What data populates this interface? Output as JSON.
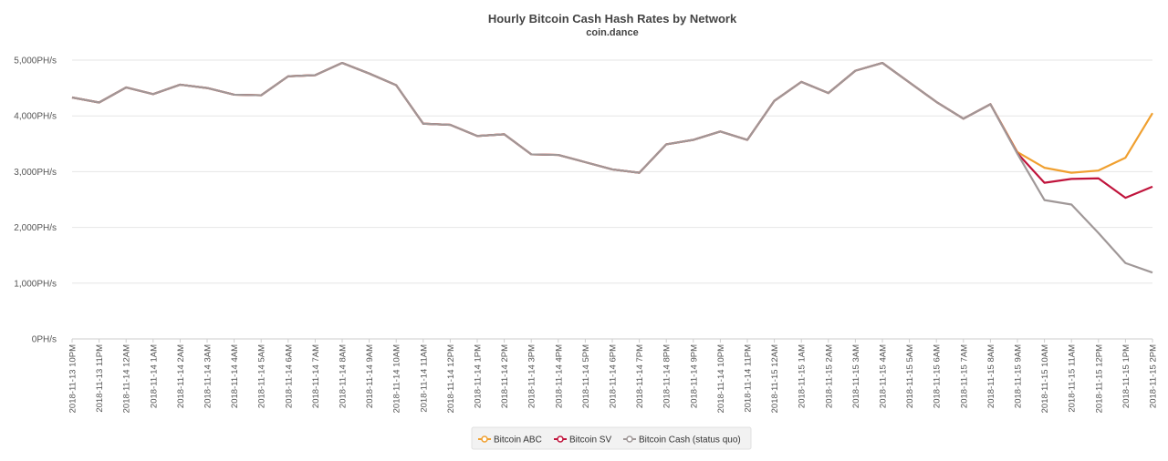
{
  "chart_data": {
    "type": "line",
    "title": "Hourly Bitcoin Cash Hash Rates by Network",
    "subtitle": "coin.dance",
    "xlabel": "",
    "ylabel": "",
    "ylim": [
      0,
      5000
    ],
    "y_ticks": [
      "0PH/s",
      "1,000PH/s",
      "2,000PH/s",
      "3,000PH/s",
      "4,000PH/s",
      "5,000PH/s"
    ],
    "y_tick_values": [
      0,
      1000,
      2000,
      3000,
      4000,
      5000
    ],
    "grid": true,
    "legend_position": "bottom-center",
    "categories": [
      "2018-11-13 10PM",
      "2018-11-13 11PM",
      "2018-11-14 12AM",
      "2018-11-14 1AM",
      "2018-11-14 2AM",
      "2018-11-14 3AM",
      "2018-11-14 4AM",
      "2018-11-14 5AM",
      "2018-11-14 6AM",
      "2018-11-14 7AM",
      "2018-11-14 8AM",
      "2018-11-14 9AM",
      "2018-11-14 10AM",
      "2018-11-14 11AM",
      "2018-11-14 12PM",
      "2018-11-14 1PM",
      "2018-11-14 2PM",
      "2018-11-14 3PM",
      "2018-11-14 4PM",
      "2018-11-14 5PM",
      "2018-11-14 6PM",
      "2018-11-14 7PM",
      "2018-11-14 8PM",
      "2018-11-14 9PM",
      "2018-11-14 10PM",
      "2018-11-14 11PM",
      "2018-11-15 12AM",
      "2018-11-15 1AM",
      "2018-11-15 2AM",
      "2018-11-15 3AM",
      "2018-11-15 4AM",
      "2018-11-15 5AM",
      "2018-11-15 6AM",
      "2018-11-15 7AM",
      "2018-11-15 8AM",
      "2018-11-15 9AM",
      "2018-11-15 10AM",
      "2018-11-15 11AM",
      "2018-11-15 12PM",
      "2018-11-15 1PM",
      "2018-11-15 2PM"
    ],
    "series": [
      {
        "name": "Bitcoin ABC",
        "color": "#f0a030",
        "values": [
          4330,
          4240,
          4510,
          4390,
          4560,
          4500,
          4380,
          4370,
          4710,
          4730,
          4950,
          4760,
          4550,
          3860,
          3840,
          3640,
          3670,
          3310,
          3300,
          3170,
          3040,
          2980,
          3490,
          3570,
          3720,
          3570,
          4270,
          4610,
          4410,
          4810,
          4950,
          4600,
          4250,
          3950,
          4210,
          3350,
          3070,
          2980,
          3020,
          3250,
          4050
        ]
      },
      {
        "name": "Bitcoin SV",
        "color": "#c0143c",
        "values": [
          4330,
          4240,
          4510,
          4390,
          4560,
          4500,
          4380,
          4370,
          4710,
          4730,
          4950,
          4760,
          4550,
          3860,
          3840,
          3640,
          3670,
          3310,
          3300,
          3170,
          3040,
          2980,
          3490,
          3570,
          3720,
          3570,
          4270,
          4610,
          4410,
          4810,
          4950,
          4600,
          4250,
          3950,
          4210,
          3330,
          2800,
          2870,
          2880,
          2530,
          2730
        ]
      },
      {
        "name": "Bitcoin Cash (status quo)",
        "color": "#a09898",
        "values": [
          4330,
          4240,
          4510,
          4390,
          4560,
          4500,
          4380,
          4370,
          4710,
          4730,
          4950,
          4760,
          4550,
          3860,
          3840,
          3640,
          3670,
          3310,
          3300,
          3170,
          3040,
          2980,
          3490,
          3570,
          3720,
          3570,
          4270,
          4610,
          4410,
          4810,
          4950,
          4600,
          4250,
          3950,
          4210,
          3320,
          2490,
          2410,
          1900,
          1360,
          1190
        ]
      }
    ]
  }
}
